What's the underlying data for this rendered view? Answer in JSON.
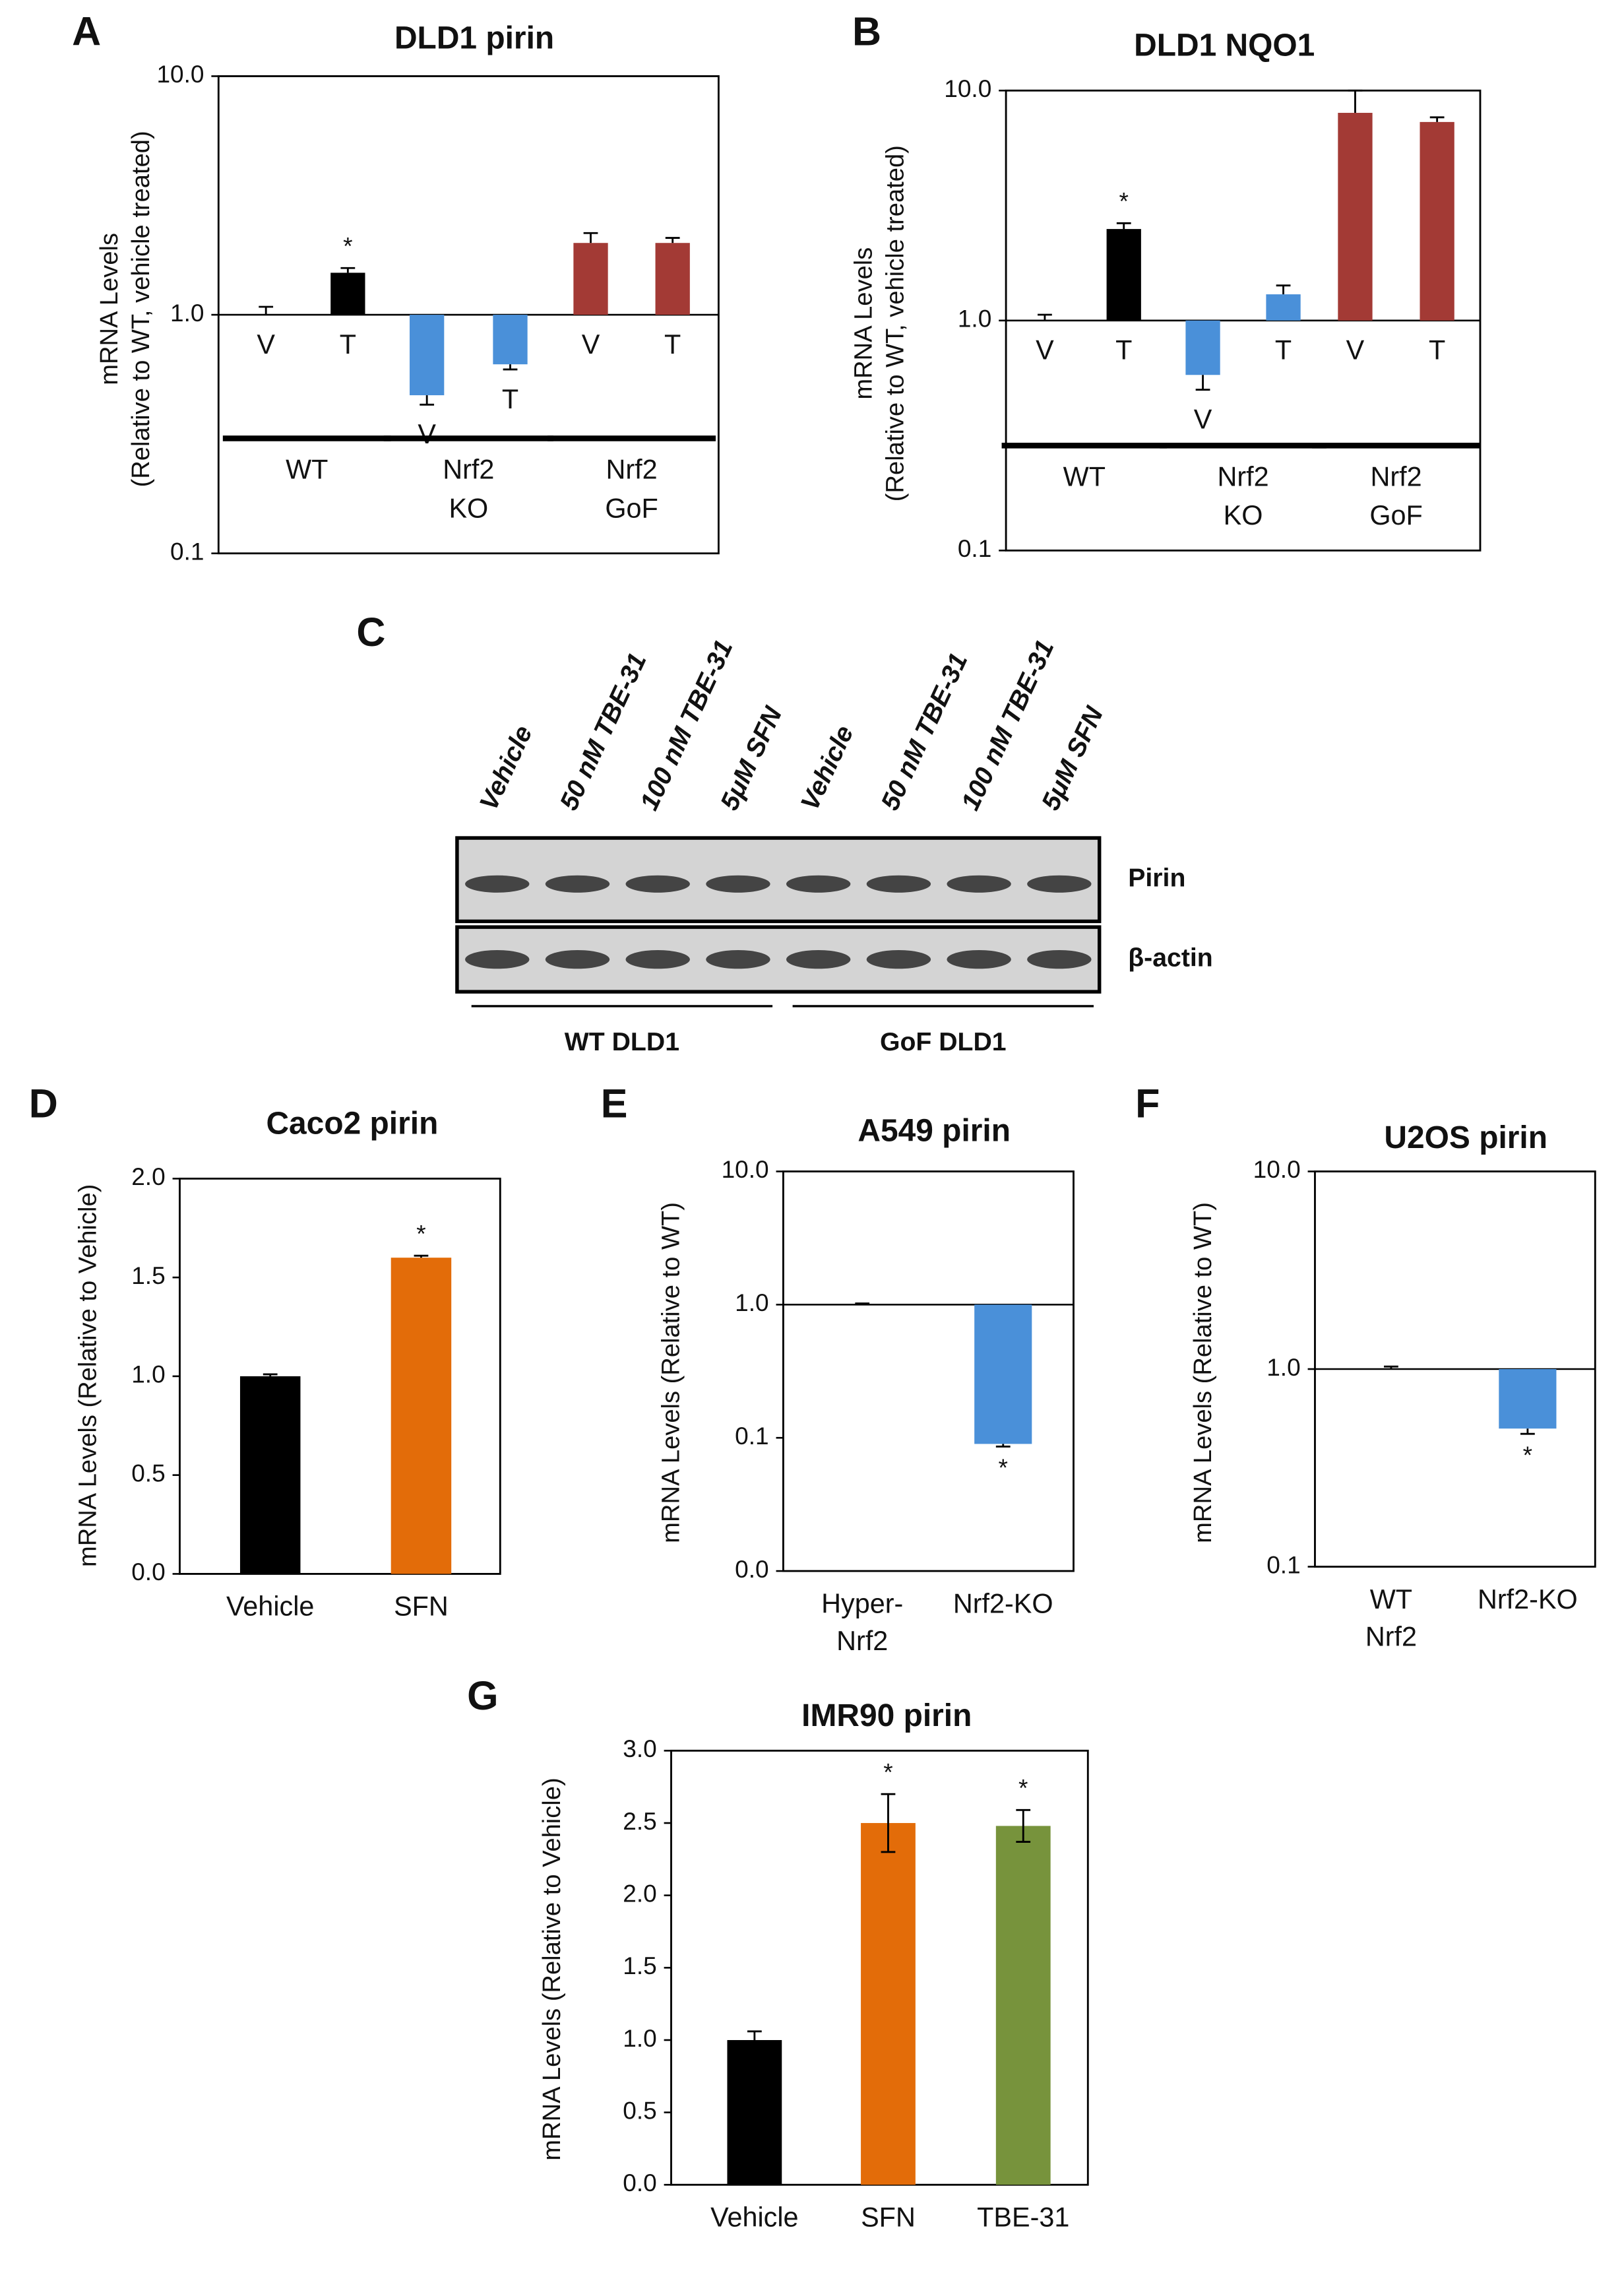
{
  "chart_data": [
    {
      "type": "bar",
      "panel": "A",
      "title": "DLD1 pirin",
      "log": true,
      "ylabel": [
        "mRNA Levels",
        "(Relative to WT, vehicle treated)"
      ],
      "ylim": [
        0.1,
        10
      ],
      "yticks": [
        0.1,
        {
          "value": 1,
          "label": "1.0"
        },
        {
          "value": 10,
          "label": "10.0"
        }
      ],
      "categories": [
        "V",
        "T",
        "V",
        "T",
        "V",
        "T"
      ],
      "values": [
        1.0,
        1.5,
        0.46,
        0.62,
        2.0,
        2.0
      ],
      "errors": [
        0.08,
        0.07,
        0.04,
        0.03,
        0.2,
        0.1
      ],
      "colors": [
        "#000000",
        "#000000",
        "#4a90d9",
        "#4a90d9",
        "#a33a35",
        "#a33a35"
      ],
      "groups": [
        [
          "WT"
        ],
        [
          "Nrf2",
          "KO"
        ],
        [
          "Nrf2",
          "GoF"
        ]
      ],
      "annotations": [
        {
          "index": 1,
          "text": "*"
        }
      ],
      "error_bars": "outer"
    },
    {
      "type": "bar",
      "panel": "B",
      "title": "DLD1 NQO1",
      "log": true,
      "ylabel": [
        "mRNA Levels",
        "(Relative to WT, vehicle treated)"
      ],
      "ylim": [
        0.1,
        10
      ],
      "yticks": [
        0.1,
        {
          "value": 1,
          "label": "1.0"
        },
        {
          "value": 10,
          "label": "10.0"
        }
      ],
      "categories": [
        "V",
        "T",
        "V",
        "T",
        "V",
        "T"
      ],
      "values": [
        1.0,
        2.5,
        0.58,
        1.3,
        8.0,
        7.3
      ],
      "errors": [
        0.06,
        0.15,
        0.08,
        0.12,
        2.0,
        0.35
      ],
      "colors": [
        "#000000",
        "#000000",
        "#4a90d9",
        "#4a90d9",
        "#a33a35",
        "#a33a35"
      ],
      "groups": [
        [
          "WT"
        ],
        [
          "Nrf2",
          "KO"
        ],
        [
          "Nrf2",
          "GoF"
        ]
      ],
      "annotations": [
        {
          "index": 1,
          "text": "*"
        }
      ],
      "error_bars": "outer"
    },
    {
      "type": "bar",
      "panel": "D",
      "title": "Caco2 pirin",
      "log": false,
      "ylabel": "mRNA Levels (Relative to Vehicle)",
      "ylim": [
        0,
        2
      ],
      "yticks": [
        {
          "value": 0,
          "label": "0.0"
        },
        0.5,
        {
          "value": 1,
          "label": "1.0"
        },
        1.5,
        {
          "value": 2,
          "label": "2.0"
        }
      ],
      "categories": [
        "Vehicle",
        "SFN"
      ],
      "values": [
        1.0,
        1.6
      ],
      "errors": [
        0.01,
        0.01
      ],
      "colors": [
        "#000000",
        "#e36c09"
      ],
      "annotations": [
        {
          "index": 1,
          "text": "*"
        }
      ],
      "error_bars": "outer"
    },
    {
      "type": "bar",
      "panel": "E",
      "title": "A549 pirin",
      "log": true,
      "ylabel": "mRNA Levels (Relative to WT)",
      "ylim": [
        0.01,
        10
      ],
      "yticks": [
        {
          "value": 0.01,
          "label": "0.0"
        },
        0.1,
        {
          "value": 1,
          "label": "1.0"
        },
        {
          "value": 10,
          "label": "10.0"
        }
      ],
      "categories": [
        [
          "Hyper-",
          "Nrf2"
        ],
        "Nrf2-KO"
      ],
      "values": [
        1.0,
        0.09
      ],
      "errors": [
        0.02,
        0.004
      ],
      "colors": [
        "#000000",
        "#4a90d9"
      ],
      "annotations": [
        {
          "index": 1,
          "text": "*"
        }
      ],
      "error_bars": "outer"
    },
    {
      "type": "bar",
      "panel": "F",
      "title": "U2OS pirin",
      "log": true,
      "ylabel": "mRNA Levels (Relative to WT)",
      "ylim": [
        0.1,
        10
      ],
      "yticks": [
        0.1,
        {
          "value": 1,
          "label": "1.0"
        },
        {
          "value": 10,
          "label": "10.0"
        }
      ],
      "categories": [
        [
          "WT",
          "Nrf2"
        ],
        "Nrf2-KO"
      ],
      "values": [
        1.0,
        0.5
      ],
      "errors": [
        0.03,
        0.03
      ],
      "colors": [
        "#000000",
        "#4a90d9"
      ],
      "annotations": [
        {
          "index": 1,
          "text": "*"
        }
      ],
      "error_bars": "outer"
    },
    {
      "type": "bar",
      "panel": "G",
      "title": "IMR90 pirin",
      "log": false,
      "ylabel": "mRNA Levels (Relative to Vehicle)",
      "ylim": [
        0,
        3
      ],
      "yticks": [
        {
          "value": 0,
          "label": "0.0"
        },
        0.5,
        {
          "value": 1,
          "label": "1.0"
        },
        1.5,
        {
          "value": 2,
          "label": "2.0"
        },
        2.5,
        {
          "value": 3,
          "label": "3.0"
        }
      ],
      "categories": [
        "Vehicle",
        "SFN",
        "TBE-31"
      ],
      "values": [
        1.0,
        2.5,
        2.48
      ],
      "errors": [
        0.06,
        0.2,
        0.11
      ],
      "colors": [
        "#000000",
        "#e36c09",
        "#77933c"
      ],
      "annotations": [
        {
          "index": 1,
          "text": "*"
        },
        {
          "index": 2,
          "text": "*"
        }
      ],
      "error_bars": "both"
    }
  ],
  "blot": {
    "panel": "C",
    "lanes": [
      "Vehicle",
      "50 nM TBE-31",
      "100 nM TBE-31",
      "5μM SFN",
      "Vehicle",
      "50 nM TBE-31",
      "100 nM TBE-31",
      "5μM SFN"
    ],
    "bands": [
      "Pirin",
      "β-actin"
    ],
    "groups": [
      "WT DLD1",
      "GoF DLD1"
    ]
  }
}
